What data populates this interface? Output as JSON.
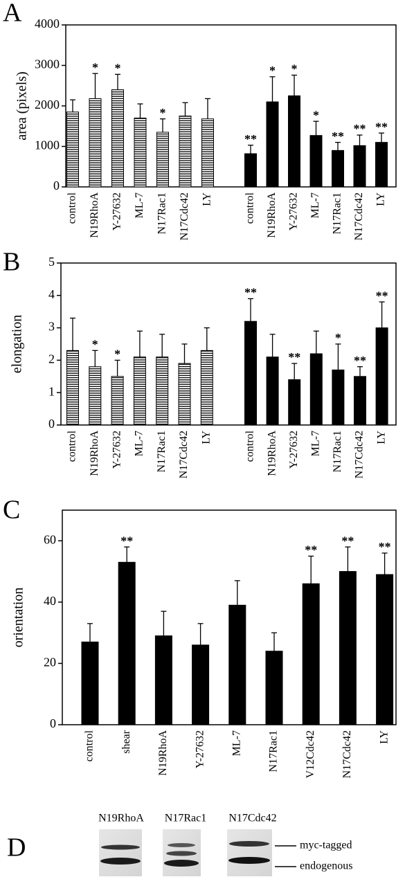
{
  "chart_data": [
    {
      "type": "bar",
      "panel_label": "A",
      "y_label": "area (pixels)",
      "ylim": [
        0,
        4000
      ],
      "yticks": [
        0,
        1000,
        2000,
        3000,
        4000
      ],
      "groups": [
        {
          "fill": "hatched",
          "categories": [
            "control",
            "N19RhoA",
            "Y-27632",
            "ML-7",
            "N17Rac1",
            "N17Cdc42",
            "LY"
          ],
          "values": [
            1850,
            2180,
            2400,
            1700,
            1350,
            1750,
            1680
          ],
          "errors": [
            300,
            620,
            380,
            350,
            330,
            330,
            500
          ],
          "annotations": [
            null,
            "*",
            "*",
            null,
            "*",
            null,
            null
          ]
        },
        {
          "fill": "solid",
          "categories": [
            "control",
            "N19RhoA",
            "Y-27632",
            "ML-7",
            "N17Rac1",
            "N17Cdc42",
            "LY"
          ],
          "values": [
            820,
            2100,
            2250,
            1270,
            900,
            1020,
            1100
          ],
          "errors": [
            210,
            620,
            510,
            350,
            200,
            260,
            230
          ],
          "annotations": [
            "**",
            "*",
            "*",
            "*",
            "**",
            "**",
            "**"
          ]
        }
      ]
    },
    {
      "type": "bar",
      "panel_label": "B",
      "y_label": "elongation",
      "ylim": [
        0,
        5
      ],
      "yticks": [
        0,
        1,
        2,
        3,
        4,
        5
      ],
      "groups": [
        {
          "fill": "hatched",
          "categories": [
            "control",
            "N19RhoA",
            "Y-27632",
            "ML-7",
            "N17Rac1",
            "N17Cdc42",
            "LY"
          ],
          "values": [
            2.3,
            1.8,
            1.5,
            2.1,
            2.1,
            1.9,
            2.3
          ],
          "errors": [
            1.0,
            0.5,
            0.5,
            0.8,
            0.7,
            0.6,
            0.7
          ],
          "annotations": [
            null,
            "*",
            "*",
            null,
            null,
            null,
            null
          ]
        },
        {
          "fill": "solid",
          "categories": [
            "control",
            "N19RhoA",
            "Y-27632",
            "ML-7",
            "N17Rac1",
            "N17Cdc42",
            "LY"
          ],
          "values": [
            3.2,
            2.1,
            1.4,
            2.2,
            1.7,
            1.5,
            3.0
          ],
          "errors": [
            0.7,
            0.7,
            0.5,
            0.7,
            0.8,
            0.3,
            0.8
          ],
          "annotations": [
            "**",
            null,
            "**",
            null,
            "*",
            "**",
            "**"
          ]
        }
      ]
    },
    {
      "type": "bar",
      "panel_label": "C",
      "y_label": "orientation",
      "ylim": [
        0,
        70
      ],
      "yticks": [
        0,
        20,
        40,
        60
      ],
      "groups": [
        {
          "fill": "solid",
          "categories": [
            "control",
            "shear",
            "N19RhoA",
            "Y-27632",
            "ML-7",
            "N17Rac1",
            "V12Cdc42",
            "N17Cdc42",
            "LY"
          ],
          "values": [
            27,
            53,
            29,
            26,
            39,
            24,
            46,
            50,
            49
          ],
          "errors": [
            6,
            5,
            8,
            7,
            8,
            6,
            9,
            8,
            7
          ],
          "annotations": [
            null,
            "**",
            null,
            null,
            null,
            null,
            "**",
            "**",
            "**"
          ]
        }
      ]
    }
  ],
  "blot": {
    "panel_label": "D",
    "lanes": [
      "N19RhoA",
      "N17Rac1",
      "N17Cdc42"
    ],
    "bands": [
      "myc-tagged",
      "endogenous"
    ]
  }
}
